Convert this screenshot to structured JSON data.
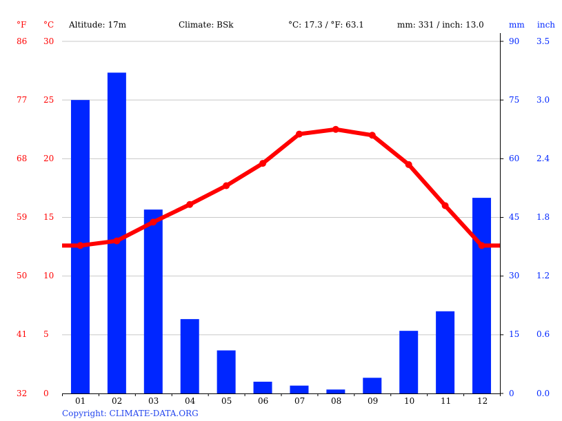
{
  "header": {
    "unit_f": "°F",
    "unit_c": "°C",
    "altitude": "Altitude: 17m",
    "climate": "Climate: BSk",
    "temp_summary": "°C: 17.3 / °F: 63.1",
    "precip_summary": "mm: 331 / inch: 13.0",
    "unit_mm": "mm",
    "unit_inch": "inch"
  },
  "axes": {
    "left_f_ticks": [
      "86",
      "77",
      "68",
      "59",
      "50",
      "41",
      "32"
    ],
    "left_c_ticks": [
      "30",
      "25",
      "20",
      "15",
      "10",
      "5",
      "0"
    ],
    "right_mm_ticks": [
      "90",
      "75",
      "60",
      "45",
      "30",
      "15",
      "0"
    ],
    "right_inch_ticks": [
      "3.5",
      "3.0",
      "2.4",
      "1.8",
      "1.2",
      "0.6",
      "0.0"
    ],
    "months": [
      "01",
      "02",
      "03",
      "04",
      "05",
      "06",
      "07",
      "08",
      "09",
      "10",
      "11",
      "12"
    ]
  },
  "footer": {
    "copyright": "Copyright: CLIMATE-DATA.ORG"
  },
  "colors": {
    "temperature": "#ff0000",
    "precipitation": "#0026ff",
    "grid": "#c8c8c8",
    "axis": "#000000"
  },
  "chart_data": {
    "type": "bar+line",
    "title": "Climate graph",
    "categories": [
      "01",
      "02",
      "03",
      "04",
      "05",
      "06",
      "07",
      "08",
      "09",
      "10",
      "11",
      "12"
    ],
    "series": [
      {
        "name": "Precipitation (mm)",
        "type": "bar",
        "axis": "right",
        "color": "#0026ff",
        "values": [
          75,
          82,
          47,
          19,
          11,
          3,
          2,
          1,
          4,
          16,
          21,
          50
        ]
      },
      {
        "name": "Temperature (°C)",
        "type": "line",
        "axis": "left",
        "color": "#ff0000",
        "values": [
          12.6,
          13.0,
          14.6,
          16.1,
          17.7,
          19.6,
          22.1,
          22.5,
          22.0,
          19.5,
          16.0,
          12.6
        ]
      }
    ],
    "xlabel": "",
    "ylabel_left": "°C / °F",
    "ylabel_right": "mm / inch",
    "ylim_left_c": [
      0,
      30
    ],
    "ylim_left_f": [
      32,
      86
    ],
    "ylim_right_mm": [
      0,
      90
    ],
    "ylim_right_inch": [
      0.0,
      3.5
    ],
    "grid": true,
    "annotations": [
      "Altitude: 17m",
      "Climate: BSk",
      "°C: 17.3 / °F: 63.1",
      "mm: 331 / inch: 13.0"
    ]
  }
}
